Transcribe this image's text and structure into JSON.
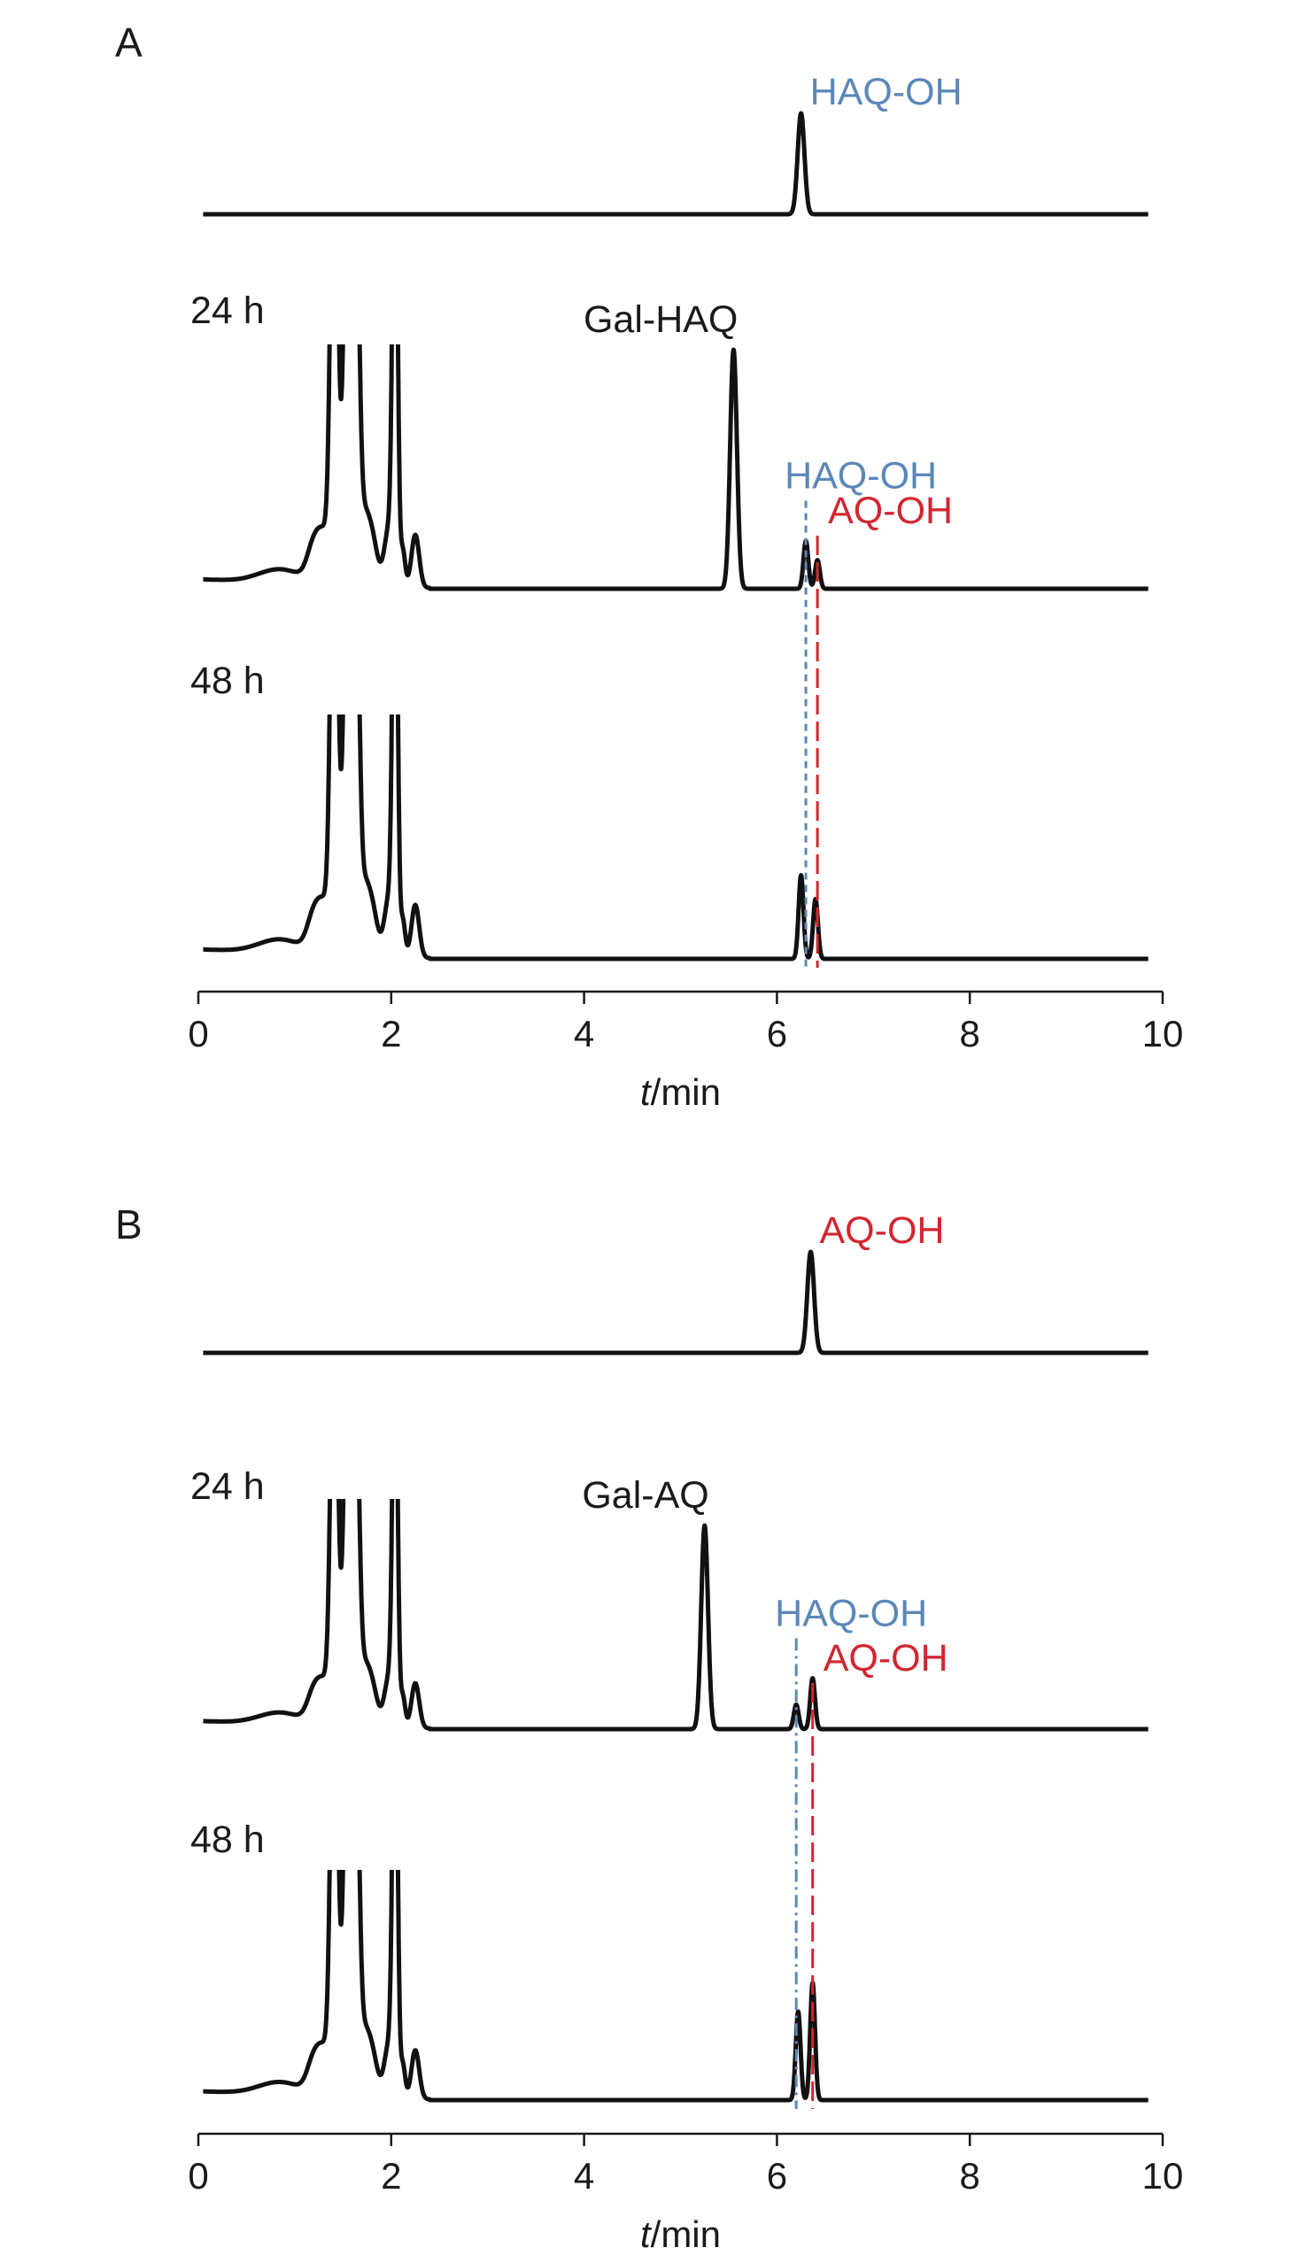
{
  "chart_data": [
    {
      "panel": "A",
      "type": "line",
      "xlabel_italic": "t",
      "xlabel_rest": "/min",
      "xlim": [
        0,
        10
      ],
      "xticks": [
        "0",
        "2",
        "4",
        "6",
        "8",
        "10"
      ],
      "traces": [
        {
          "label": "",
          "peaks": [
            {
              "rt": 6.25,
              "height": 0.95,
              "name": "HAQ-OH",
              "color": "#5b87b8"
            }
          ]
        },
        {
          "label": "24 h",
          "peaks": [
            {
              "rt": 5.55,
              "height": 1.0,
              "name": "Gal-HAQ",
              "color": "#1a1a1a"
            },
            {
              "rt": 6.3,
              "height": 0.2,
              "name": "HAQ-OH",
              "color": "#5b87b8",
              "marker": "dotted"
            },
            {
              "rt": 6.42,
              "height": 0.12,
              "name": "AQ-OH",
              "color": "#d22630",
              "marker": "dashed"
            }
          ]
        },
        {
          "label": "48 h",
          "peaks": [
            {
              "rt": 6.25,
              "height": 0.35,
              "name": "",
              "color": "#1a1a1a"
            },
            {
              "rt": 6.4,
              "height": 0.25,
              "name": "",
              "color": "#1a1a1a"
            }
          ]
        }
      ]
    },
    {
      "panel": "B",
      "type": "line",
      "xlabel_italic": "t",
      "xlabel_rest": "/min",
      "xlim": [
        0,
        10
      ],
      "xticks": [
        "0",
        "2",
        "4",
        "6",
        "8",
        "10"
      ],
      "traces": [
        {
          "label": "",
          "peaks": [
            {
              "rt": 6.35,
              "height": 0.95,
              "name": "AQ-OH",
              "color": "#d22630"
            }
          ]
        },
        {
          "label": "24 h",
          "peaks": [
            {
              "rt": 5.25,
              "height": 1.0,
              "name": "Gal-AQ",
              "color": "#1a1a1a"
            },
            {
              "rt": 6.2,
              "height": 0.12,
              "name": "HAQ-OH",
              "color": "#5b87b8",
              "marker": "dashdot"
            },
            {
              "rt": 6.37,
              "height": 0.25,
              "name": "AQ-OH",
              "color": "#d22630",
              "marker": "dashed"
            }
          ]
        },
        {
          "label": "48 h",
          "peaks": [
            {
              "rt": 6.22,
              "height": 0.4,
              "name": "",
              "color": "#1a1a1a"
            },
            {
              "rt": 6.37,
              "height": 0.53,
              "name": "",
              "color": "#1a1a1a"
            }
          ]
        }
      ]
    }
  ]
}
